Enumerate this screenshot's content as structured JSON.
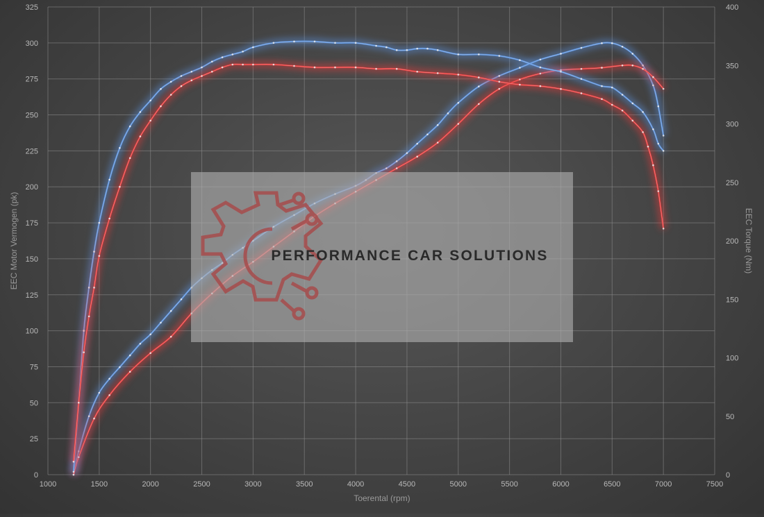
{
  "chart_data": {
    "type": "line",
    "xlabel": "Toerental (rpm)",
    "ylabel_left": "EEC Motor Vermogen (pk)",
    "ylabel_right": "EEC Torque (Nm)",
    "xlim": [
      1000,
      7500
    ],
    "ylim_left": [
      0,
      325
    ],
    "ylim_right": [
      0,
      400
    ],
    "x_ticks": [
      1000,
      1500,
      2000,
      2500,
      3000,
      3500,
      4000,
      4500,
      5000,
      5500,
      6000,
      6500,
      7000,
      7500
    ],
    "y_left_ticks": [
      0,
      25,
      50,
      75,
      100,
      125,
      150,
      175,
      200,
      225,
      250,
      275,
      300,
      325
    ],
    "y_right_ticks": [
      0,
      50,
      100,
      150,
      200,
      250,
      300,
      350,
      400
    ],
    "grid": true,
    "watermark": "PERFORMANCE CAR SOLUTIONS",
    "colors": {
      "tuned": "#5c93e0",
      "stock": "#ea3b3b"
    },
    "series": [
      {
        "axis": "right",
        "color": "tuned",
        "x": [
          1250,
          1300,
          1400,
          1500,
          1600,
          1700,
          1800,
          1900,
          2000,
          2100,
          2200,
          2300,
          2400,
          2500,
          2600,
          2700,
          2800,
          2900,
          3000,
          3200,
          3400,
          3600,
          3800,
          4000,
          4100,
          4200,
          4300,
          4400,
          4500,
          4600,
          4700,
          4800,
          4900,
          5000,
          5200,
          5400,
          5600,
          5800,
          6000,
          6200,
          6400,
          6500,
          6600,
          6700,
          6800,
          6900,
          6950,
          7000
        ],
        "y": [
          0,
          20,
          50,
          70,
          82,
          92,
          102,
          112,
          120,
          130,
          140,
          150,
          160,
          168,
          175,
          181,
          188,
          194,
          200,
          212,
          222,
          232,
          240,
          247,
          252,
          258,
          262,
          268,
          275,
          283,
          291,
          299,
          309,
          318,
          332,
          341,
          348,
          355,
          360,
          365,
          369,
          369,
          366,
          360,
          350,
          333,
          315,
          290
        ]
      },
      {
        "axis": "right",
        "color": "stock",
        "x": [
          1250,
          1300,
          1450,
          1600,
          1800,
          2000,
          2200,
          2400,
          2600,
          2800,
          3000,
          3200,
          3400,
          3600,
          3800,
          4000,
          4200,
          4400,
          4600,
          4800,
          5000,
          5200,
          5400,
          5600,
          5800,
          6000,
          6200,
          6400,
          6600,
          6700,
          6800,
          6900,
          7000
        ],
        "y": [
          0,
          15,
          48,
          68,
          88,
          104,
          118,
          138,
          155,
          170,
          182,
          195,
          208,
          221,
          232,
          242,
          252,
          262,
          272,
          284,
          300,
          317,
          330,
          338,
          343,
          346,
          347,
          348,
          350,
          350,
          347,
          340,
          330
        ]
      },
      {
        "axis": "left",
        "color": "tuned",
        "x": [
          1250,
          1300,
          1350,
          1400,
          1450,
          1500,
          1600,
          1700,
          1800,
          1900,
          2000,
          2100,
          2200,
          2300,
          2400,
          2500,
          2600,
          2700,
          2800,
          2900,
          3000,
          3200,
          3400,
          3600,
          3800,
          4000,
          4200,
          4300,
          4400,
          4500,
          4600,
          4700,
          4800,
          5000,
          5200,
          5400,
          5600,
          5800,
          6000,
          6200,
          6400,
          6500,
          6600,
          6700,
          6800,
          6900,
          6950,
          7000
        ],
        "y": [
          2,
          50,
          100,
          130,
          155,
          175,
          205,
          227,
          242,
          252,
          260,
          268,
          273,
          277,
          280,
          283,
          287,
          290,
          292,
          294,
          297,
          300,
          301,
          301,
          300,
          300,
          298,
          297,
          295,
          295,
          296,
          296,
          295,
          292,
          292,
          291,
          288,
          283,
          280,
          275,
          270,
          269,
          264,
          258,
          252,
          240,
          230,
          225
        ]
      },
      {
        "axis": "left",
        "color": "stock",
        "x": [
          1250,
          1300,
          1350,
          1400,
          1450,
          1500,
          1600,
          1700,
          1800,
          1900,
          2000,
          2100,
          2200,
          2300,
          2400,
          2500,
          2600,
          2700,
          2800,
          2900,
          3000,
          3200,
          3400,
          3600,
          3800,
          4000,
          4200,
          4400,
          4600,
          4800,
          5000,
          5200,
          5400,
          5600,
          5800,
          6000,
          6200,
          6400,
          6500,
          6600,
          6700,
          6800,
          6850,
          6900,
          6950,
          7000
        ],
        "y": [
          9,
          50,
          85,
          110,
          130,
          152,
          178,
          200,
          220,
          235,
          246,
          256,
          264,
          270,
          274,
          277,
          280,
          283,
          285,
          285,
          285,
          285,
          284,
          283,
          283,
          283,
          282,
          282,
          280,
          279,
          278,
          276,
          273,
          271,
          270,
          268,
          265,
          261,
          257,
          253,
          246,
          238,
          228,
          215,
          197,
          171
        ]
      }
    ]
  }
}
